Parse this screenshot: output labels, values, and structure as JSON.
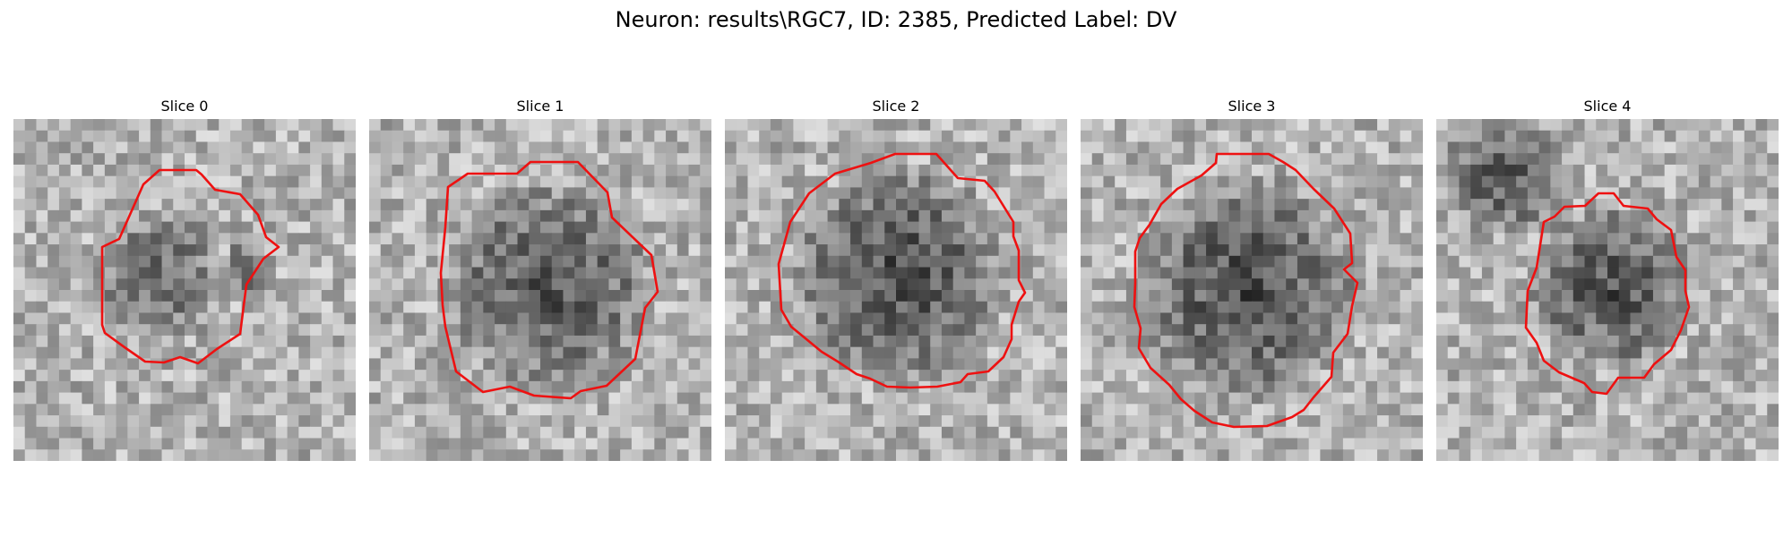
{
  "figure": {
    "title": "Neuron: results\\RGC7, ID: 2385, Predicted Label: DV"
  },
  "contour_color": "#ee1111",
  "colormap": "grayscale",
  "slices": [
    {
      "label": "Slice 0"
    },
    {
      "label": "Slice 1"
    },
    {
      "label": "Slice 2"
    },
    {
      "label": "Slice 3"
    },
    {
      "label": "Slice 4"
    }
  ]
}
